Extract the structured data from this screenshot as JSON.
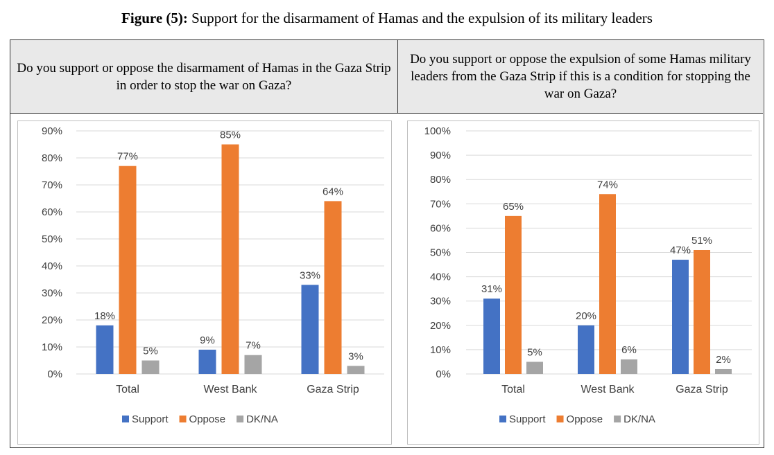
{
  "figure": {
    "label": "Figure (5):",
    "title": "Support for the disarmament of Hamas and the expulsion of its military leaders"
  },
  "colors": {
    "Support": "#4472c4",
    "Oppose": "#ed7d31",
    "DK/NA": "#a5a5a5"
  },
  "chart_data": [
    {
      "type": "bar",
      "title": "Do you support or oppose the disarmament of Hamas in the Gaza Strip in order to stop the war on Gaza?",
      "categories": [
        "Total",
        "West Bank",
        "Gaza Strip"
      ],
      "series": [
        {
          "name": "Support",
          "values": [
            18,
            9,
            33
          ]
        },
        {
          "name": "Oppose",
          "values": [
            77,
            85,
            64
          ]
        },
        {
          "name": "DK/NA",
          "values": [
            5,
            7,
            3
          ]
        }
      ],
      "ylim": [
        0,
        90
      ],
      "yticks": [
        0,
        10,
        20,
        30,
        40,
        50,
        60,
        70,
        80,
        90
      ],
      "tick_suffix": "%",
      "grid": true,
      "legend": "bottom"
    },
    {
      "type": "bar",
      "title": "Do you support or oppose the expulsion of some Hamas military leaders from the Gaza Strip if this is a condition for stopping the war on Gaza?",
      "categories": [
        "Total",
        "West Bank",
        "Gaza Strip"
      ],
      "series": [
        {
          "name": "Support",
          "values": [
            31,
            20,
            47
          ]
        },
        {
          "name": "Oppose",
          "values": [
            65,
            74,
            51
          ]
        },
        {
          "name": "DK/NA",
          "values": [
            5,
            6,
            2
          ]
        }
      ],
      "ylim": [
        0,
        100
      ],
      "yticks": [
        0,
        10,
        20,
        30,
        40,
        50,
        60,
        70,
        80,
        90,
        100
      ],
      "tick_suffix": "%",
      "grid": true,
      "legend": "bottom"
    }
  ]
}
